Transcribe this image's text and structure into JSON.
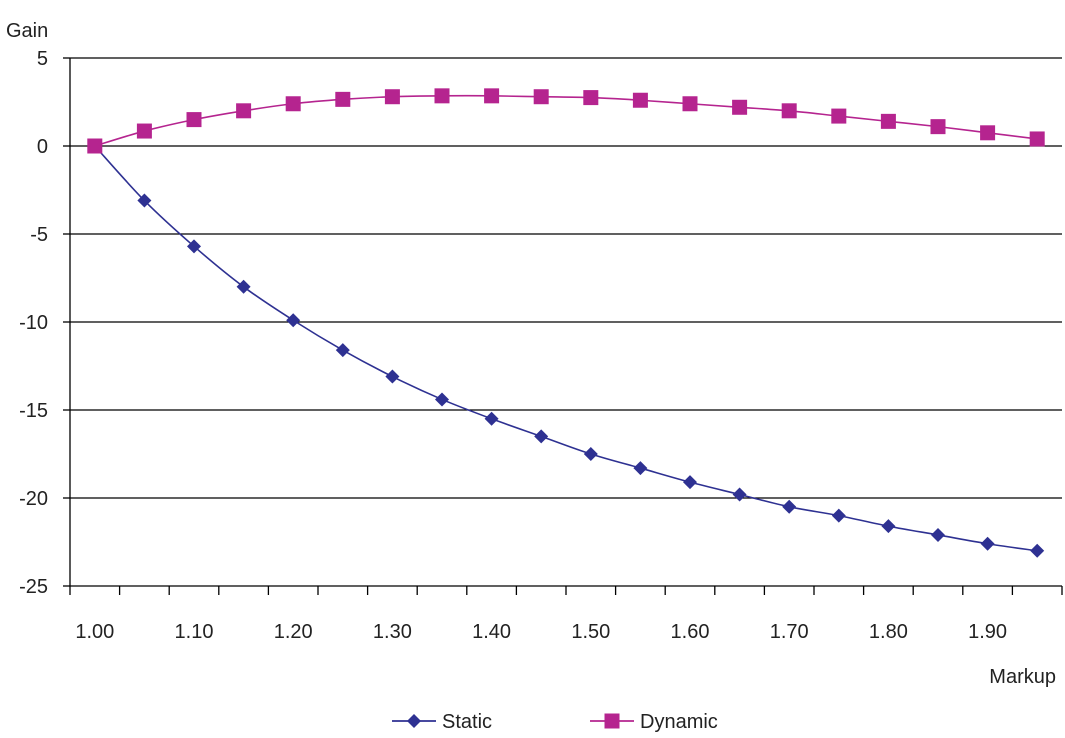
{
  "chart_data": {
    "type": "line",
    "title": "",
    "xlabel": "Markup",
    "ylabel": "Gain",
    "ylim": [
      -25,
      5
    ],
    "yticks": [
      "5",
      "0",
      "-5",
      "-10",
      "-15",
      "-20",
      "-25"
    ],
    "xtick_labels": [
      "1.00",
      "1.10",
      "1.20",
      "1.30",
      "1.40",
      "1.50",
      "1.60",
      "1.70",
      "1.80",
      "1.90"
    ],
    "x": [
      1.0,
      1.05,
      1.1,
      1.15,
      1.2,
      1.25,
      1.3,
      1.35,
      1.4,
      1.45,
      1.5,
      1.55,
      1.6,
      1.65,
      1.7,
      1.75,
      1.8,
      1.85,
      1.9,
      1.95
    ],
    "grid": "horizontal",
    "legend_position": "bottom",
    "series": [
      {
        "name": "Static",
        "color": "#2e3192",
        "marker": "diamond",
        "values": [
          0,
          -3.1,
          -5.7,
          -8.0,
          -9.9,
          -11.6,
          -13.1,
          -14.4,
          -15.5,
          -16.5,
          -17.5,
          -18.3,
          -19.1,
          -19.8,
          -20.5,
          -21.0,
          -21.6,
          -22.1,
          -22.6,
          -23.0
        ]
      },
      {
        "name": "Dynamic",
        "color": "#b5248f",
        "marker": "square",
        "values": [
          0,
          0.85,
          1.5,
          2.0,
          2.4,
          2.65,
          2.8,
          2.85,
          2.85,
          2.8,
          2.75,
          2.6,
          2.4,
          2.2,
          2.0,
          1.7,
          1.4,
          1.1,
          0.75,
          0.4
        ]
      }
    ]
  }
}
